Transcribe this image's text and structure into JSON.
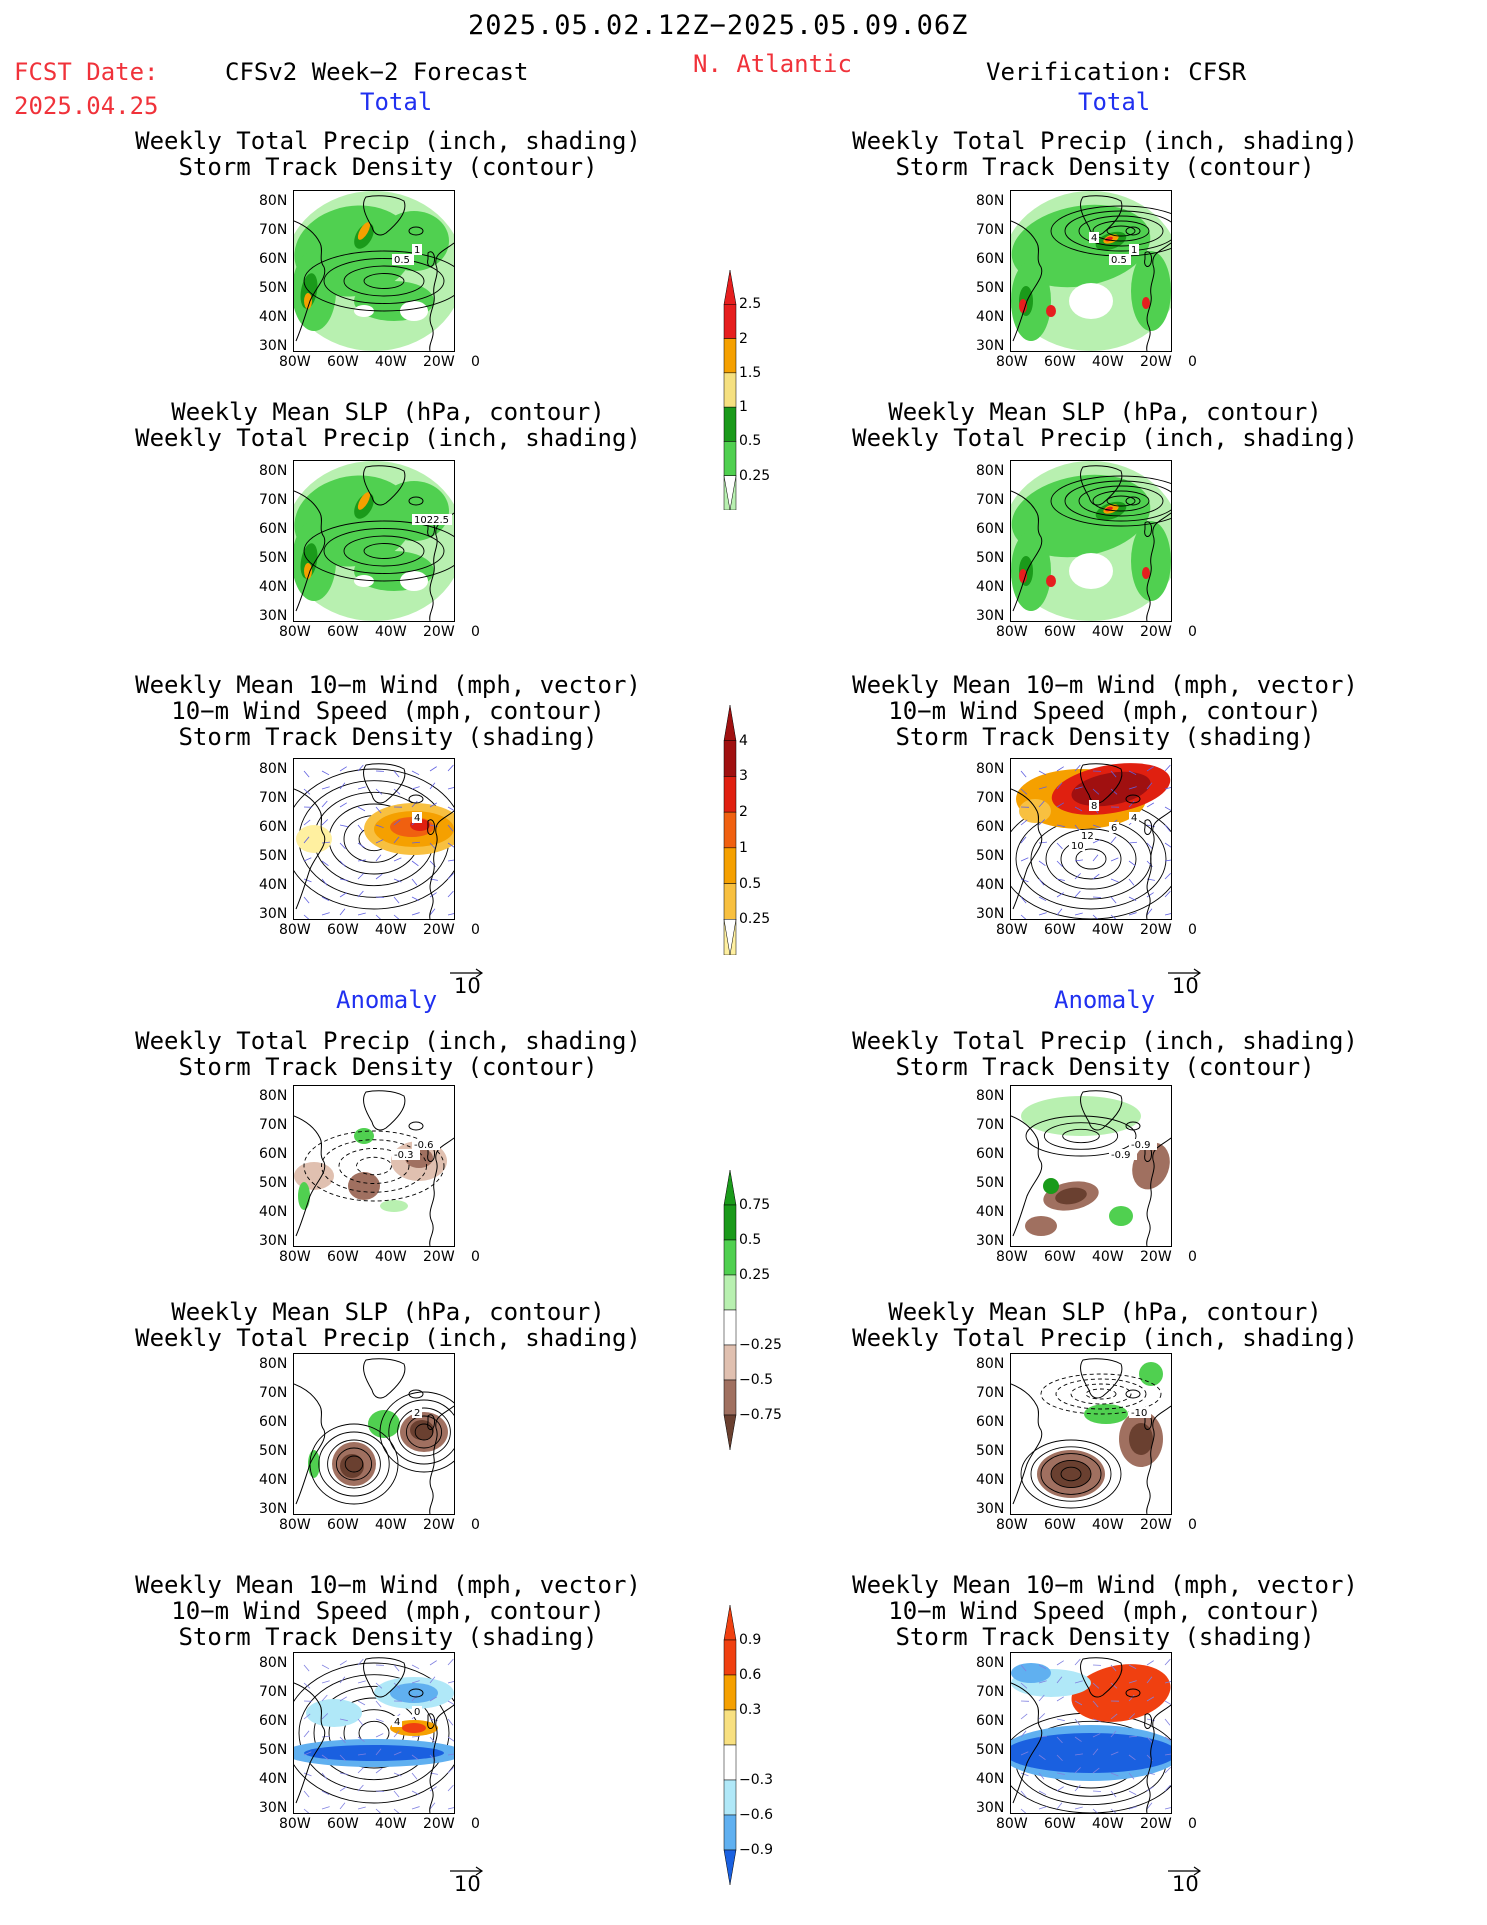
{
  "header": {
    "period": "2025.05.02.12Z−2025.05.09.06Z",
    "fcst_label": "FCST Date:",
    "fcst_date": "2025.04.25",
    "forecast": "CFSv2 Week−2 Forecast",
    "region": "N. Atlantic",
    "verification": "Verification: CFSR"
  },
  "sections": {
    "total": "Total",
    "anomaly": "Anomaly"
  },
  "panel_titles": {
    "precip_storm": [
      "Weekly Total Precip (inch, shading)",
      "Storm Track Density (contour)"
    ],
    "slp_precip": [
      "Weekly Mean SLP (hPa, contour)",
      "Weekly Total Precip (inch, shading)"
    ],
    "wind_storm": [
      "Weekly Mean 10−m Wind (mph, vector)",
      "10−m Wind Speed (mph, contour)",
      "Storm Track Density (shading)"
    ]
  },
  "lat_labels": [
    "80N",
    "70N",
    "60N",
    "50N",
    "40N",
    "30N"
  ],
  "lon_labels": [
    "80W",
    "60W",
    "40W",
    "20W",
    "0"
  ],
  "vector_ref": "10",
  "contour_labels": {
    "fc_precip_storm": [
      "1",
      "0.5"
    ],
    "fc_slp_precip": [
      "1022.5"
    ],
    "fc_wind_storm": [
      "4"
    ],
    "ver_precip_storm": [
      "1",
      "0.5",
      "4"
    ],
    "ver_wind_storm": [
      "4",
      "6",
      "8",
      "10",
      "12"
    ],
    "fa_precip_storm": [
      "-0.6",
      "-0.3"
    ],
    "fa_slp_precip": [
      "2"
    ],
    "fa_wind_storm": [
      "0",
      "4"
    ],
    "va_precip_storm": [
      "-0.9",
      "-0.9"
    ],
    "va_slp_precip": [
      "-10"
    ]
  },
  "colorbars": {
    "precip_total": {
      "labels": [
        "2.5",
        "2",
        "1.5",
        "1",
        "0.5",
        "0.25"
      ],
      "colors": [
        "#e61e1e",
        "#f5a000",
        "#f5e080",
        "#1a9a1a",
        "#50d050",
        "#b8f0b0"
      ]
    },
    "storm_total": {
      "labels": [
        "4",
        "3",
        "2",
        "1",
        "0.5",
        "0.25"
      ],
      "colors": [
        "#a01010",
        "#e02010",
        "#f06010",
        "#f5a000",
        "#f8c040",
        "#fff0a0"
      ]
    },
    "precip_anom": {
      "labels": [
        "0.75",
        "0.5",
        "0.25",
        "−0.25",
        "−0.5",
        "−0.75"
      ],
      "colors": [
        "#1a9a1a",
        "#50d050",
        "#b8f0b0",
        "#ffffff",
        "#e0c0b0",
        "#a07060",
        "#6a4030"
      ]
    },
    "storm_anom": {
      "labels": [
        "0.9",
        "0.6",
        "0.3",
        "−0.3",
        "−0.6",
        "−0.9"
      ],
      "colors": [
        "#f04010",
        "#f5a000",
        "#f8e080",
        "#ffffff",
        "#b0e8f8",
        "#60b0f0",
        "#1a60e0"
      ]
    }
  },
  "colors": {
    "red": "#f0323a",
    "blue": "#2030f0"
  }
}
